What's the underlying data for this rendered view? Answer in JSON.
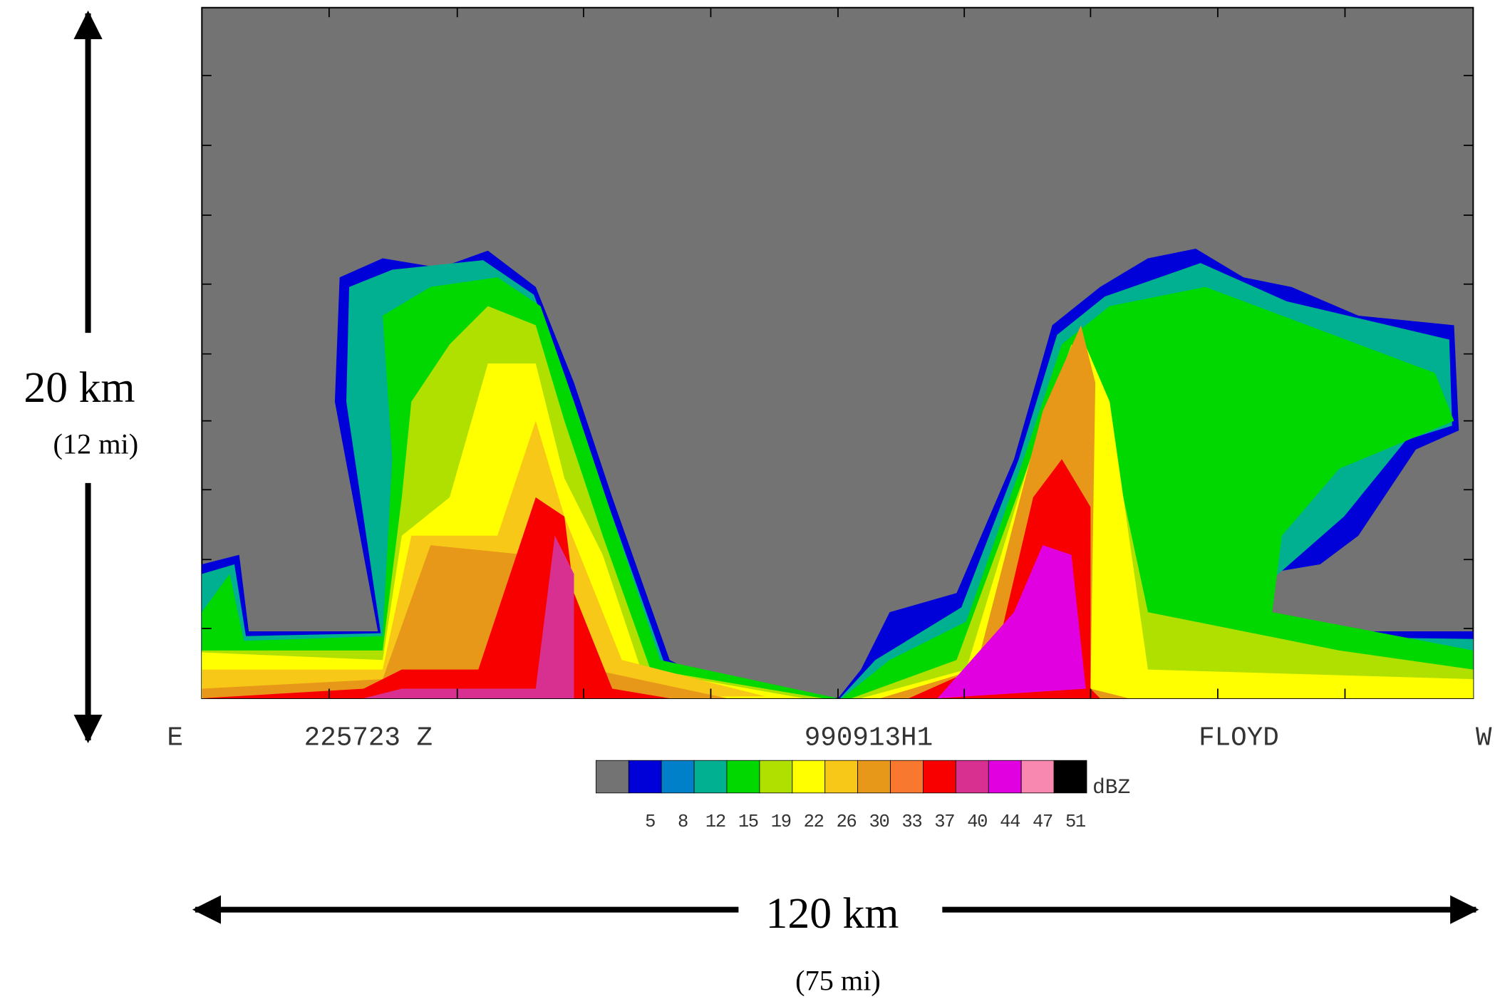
{
  "figure": {
    "vertical_scale": {
      "label": "20 km",
      "sublabel": "(12 mi)"
    },
    "horizontal_scale": {
      "label": "120 km",
      "sublabel": "(75 mi)"
    },
    "plot_labels": [
      "E",
      "225723 Z",
      "990913H1",
      "FLOYD",
      "W"
    ],
    "colorbar": {
      "unit": "dBZ",
      "colors": [
        "#737373",
        "#0000d8",
        "#0080c8",
        "#00b090",
        "#00d800",
        "#b0e000",
        "#ffff00",
        "#f8c818",
        "#e89818",
        "#f87830",
        "#f80000",
        "#d83090",
        "#e000e0",
        "#f888b0",
        "#000000"
      ],
      "ticks": [
        5,
        8,
        12,
        15,
        19,
        22,
        26,
        30,
        33,
        37,
        40,
        44,
        47,
        51
      ]
    }
  }
}
